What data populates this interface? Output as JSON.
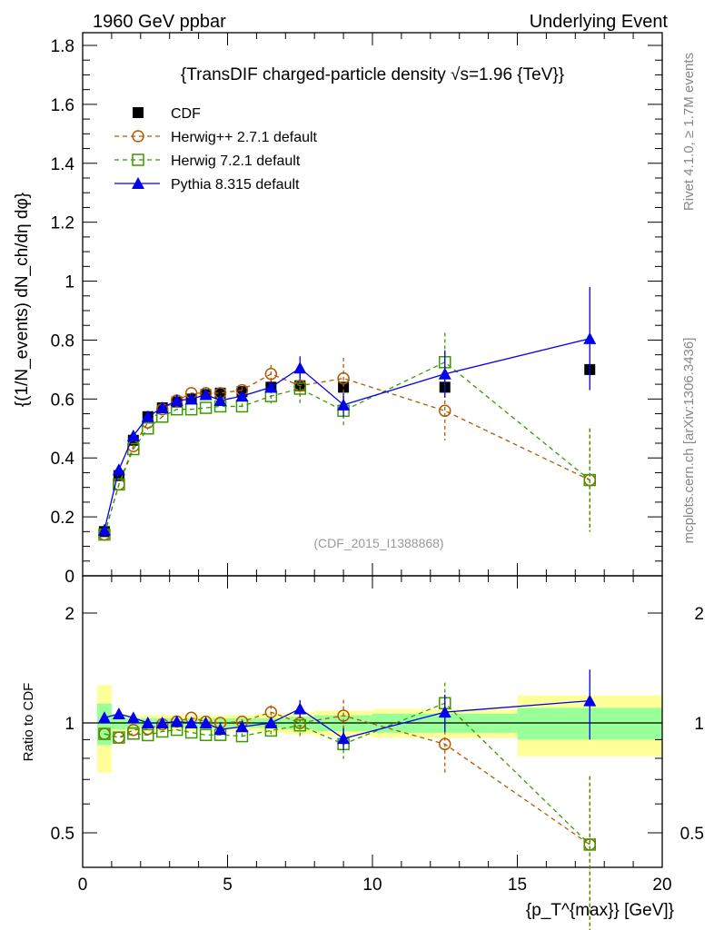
{
  "header": {
    "left": "1960 GeV ppbar",
    "right": "Underlying Event"
  },
  "side": {
    "rivet": "Rivet 4.1.0, ≥ 1.7M events",
    "mcplots": "mcplots.cern.ch [arXiv:1306.3436]"
  },
  "chart_data": {
    "type": "line",
    "title": "{TransDIF charged-particle density √s=1.96 {TeV}}",
    "ylabel_main": "{(1/N_events) dN_ch/dη dφ}",
    "ylabel_ratio": "Ratio to CDF",
    "xlabel": "{p_T^{max}} [GeV]}",
    "watermark": "(CDF_2015_I1388868)",
    "xlim": [
      0,
      20
    ],
    "ylim": [
      0,
      1.8
    ],
    "ratio_ylim": [
      0.4,
      2.5
    ],
    "ratio_scale": "log",
    "xticks": [
      "0",
      "5",
      "10",
      "15",
      "20"
    ],
    "yticks": [
      "0",
      "0.2",
      "0.4",
      "0.6",
      "0.8",
      "1",
      "1.2",
      "1.4",
      "1.6",
      "1.8"
    ],
    "ratio_yticks": [
      "0.5",
      "1",
      "2"
    ],
    "legend_position": "top-left",
    "x": [
      0.75,
      1.25,
      1.75,
      2.25,
      2.75,
      3.25,
      3.75,
      4.25,
      4.75,
      5.5,
      6.5,
      7.5,
      9,
      12.5,
      17.5
    ],
    "bin_edges": [
      0.5,
      1,
      1.5,
      2,
      2.5,
      3,
      3.5,
      4,
      4.5,
      5,
      6,
      7,
      8,
      10,
      15,
      20
    ],
    "cdf_band_total": [
      0.27,
      0.06,
      0.05,
      0.05,
      0.05,
      0.05,
      0.05,
      0.05,
      0.05,
      0.05,
      0.06,
      0.07,
      0.08,
      0.09,
      0.19
    ],
    "cdf_band_stat": [
      0.13,
      0.04,
      0.03,
      0.03,
      0.03,
      0.03,
      0.03,
      0.03,
      0.03,
      0.03,
      0.03,
      0.04,
      0.05,
      0.06,
      0.1
    ],
    "series": [
      {
        "name": "CDF",
        "color": "#000000",
        "marker": "square-filled",
        "line": "none",
        "values": [
          0.15,
          0.34,
          0.46,
          0.54,
          0.57,
          0.59,
          0.6,
          0.615,
          0.62,
          0.625,
          0.64,
          0.645,
          0.64,
          0.64,
          0.7
        ],
        "errors": [
          0,
          0,
          0,
          0,
          0,
          0,
          0,
          0,
          0,
          0,
          0,
          0,
          0,
          0,
          0
        ]
      },
      {
        "name": "Herwig++ 2.7.1 default",
        "color": "#b35900",
        "marker": "circle-open",
        "line": "dashed",
        "values": [
          0.14,
          0.31,
          0.44,
          0.52,
          0.565,
          0.595,
          0.62,
          0.62,
          0.62,
          0.63,
          0.685,
          0.645,
          0.67,
          0.56,
          0.325
        ],
        "errors": [
          0,
          0,
          0,
          0,
          0,
          0,
          0,
          0,
          0,
          0.01,
          0.03,
          0.04,
          0.07,
          0.1,
          0.175
        ]
      },
      {
        "name": "Herwig 7.2.1 default",
        "color": "#3a9a00",
        "marker": "square-open",
        "line": "dashed",
        "values": [
          0.14,
          0.31,
          0.43,
          0.5,
          0.54,
          0.565,
          0.565,
          0.57,
          0.575,
          0.575,
          0.61,
          0.635,
          0.56,
          0.725,
          0.325
        ],
        "errors": [
          0,
          0,
          0,
          0,
          0,
          0,
          0,
          0,
          0,
          0.01,
          0.025,
          0.05,
          0.05,
          0.1,
          0.175
        ]
      },
      {
        "name": "Pythia 8.315 default",
        "color": "#0000ee",
        "marker": "triangle-filled",
        "line": "solid",
        "values": [
          0.155,
          0.36,
          0.475,
          0.54,
          0.57,
          0.595,
          0.6,
          0.615,
          0.595,
          0.61,
          0.64,
          0.705,
          0.58,
          0.685,
          0.805
        ],
        "errors": [
          0,
          0,
          0,
          0,
          0,
          0,
          0,
          0,
          0,
          0.01,
          0.02,
          0.04,
          0.04,
          0.08,
          0.175
        ]
      }
    ]
  }
}
